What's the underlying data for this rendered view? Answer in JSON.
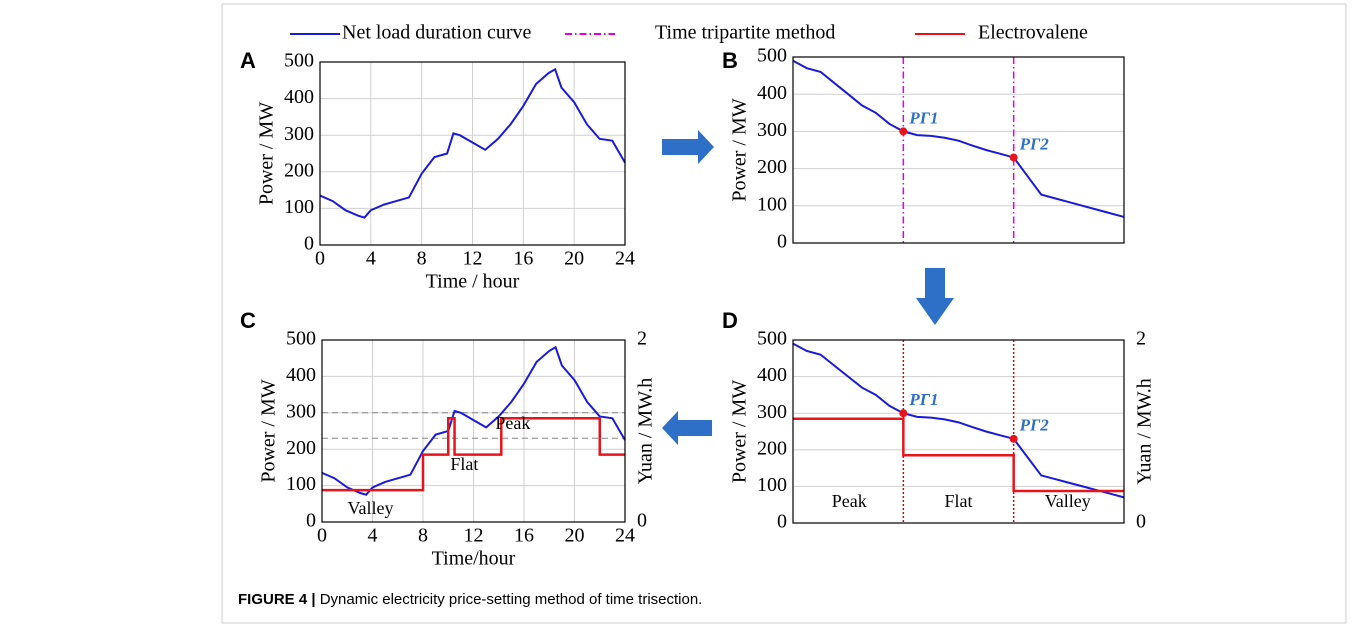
{
  "legend": [
    {
      "name": "Net load duration curve",
      "color": "#1a1adb",
      "style": "solid"
    },
    {
      "name": "Time tripartite method",
      "color": "#e000e0",
      "style": "dashdot"
    },
    {
      "name": "Electrovalene",
      "color": "#e8141c",
      "style": "solid"
    }
  ],
  "caption": {
    "label": "FIGURE 4 |",
    "text": "Dynamic electricity price-setting method of time trisection."
  },
  "chart_data": [
    {
      "type": "line",
      "panel": "A",
      "x": [
        0,
        1,
        2,
        3,
        3.5,
        4,
        5,
        6,
        7,
        8,
        9,
        10,
        10.5,
        11,
        12,
        13,
        14,
        15,
        16,
        17,
        18,
        18.5,
        19,
        20,
        21,
        22,
        23,
        24
      ],
      "series": [
        {
          "color": "#1a1adb",
          "values": [
            135,
            120,
            95,
            80,
            75,
            95,
            110,
            120,
            130,
            195,
            240,
            250,
            305,
            300,
            280,
            260,
            290,
            330,
            380,
            440,
            470,
            480,
            430,
            390,
            330,
            290,
            285,
            225
          ]
        }
      ],
      "xlim": [
        0,
        24
      ],
      "xticks": [
        0,
        4,
        8,
        12,
        16,
        20,
        24
      ],
      "ylim": [
        0,
        500
      ],
      "yticks": [
        0,
        100,
        200,
        300,
        400,
        500
      ],
      "xlabel": "Time / hour",
      "ylabel": "Power / MW",
      "grid": true
    },
    {
      "type": "line",
      "panel": "B",
      "x": [
        0,
        1,
        2,
        3,
        4,
        5,
        6,
        7,
        8,
        9,
        10,
        11,
        12,
        13,
        14,
        15,
        16,
        17,
        18,
        19,
        20,
        21,
        22,
        23,
        24
      ],
      "series": [
        {
          "color": "#1a1adb",
          "values": [
            490,
            470,
            460,
            430,
            400,
            370,
            350,
            320,
            300,
            290,
            288,
            283,
            275,
            262,
            250,
            240,
            230,
            180,
            130,
            120,
            110,
            100,
            90,
            80,
            70
          ]
        }
      ],
      "xlim": [
        0,
        24
      ],
      "ylim": [
        0,
        500
      ],
      "yticks": [
        0,
        100,
        200,
        300,
        400,
        500
      ],
      "ylabel": "Power / MW",
      "grid": true,
      "vlines": {
        "x": [
          8,
          16
        ],
        "color": "#e000e0",
        "style": "dashdot"
      },
      "points": [
        {
          "label": "PΓ1",
          "x": 8,
          "y": 300
        },
        {
          "label": "PΓ2",
          "x": 16,
          "y": 230
        }
      ]
    },
    {
      "type": "line",
      "panel": "C",
      "x": [
        0,
        1,
        2,
        3,
        3.5,
        4,
        5,
        6,
        7,
        8,
        9,
        10,
        10.5,
        11,
        12,
        13,
        14,
        15,
        16,
        17,
        18,
        18.5,
        19,
        20,
        21,
        22,
        23,
        24
      ],
      "series": [
        {
          "color": "#1a1adb",
          "values": [
            135,
            120,
            95,
            80,
            75,
            95,
            110,
            120,
            130,
            195,
            240,
            250,
            305,
            300,
            280,
            260,
            290,
            330,
            380,
            440,
            470,
            480,
            430,
            390,
            330,
            290,
            285,
            225
          ]
        },
        {
          "color": "#e8141c",
          "axis": "y2",
          "step": true,
          "x": [
            0,
            8,
            10,
            10.5,
            14.2,
            22,
            24
          ],
          "values": [
            0.35,
            0.74,
            1.14,
            0.74,
            1.14,
            0.74,
            0.74
          ]
        }
      ],
      "xlim": [
        0,
        24
      ],
      "xticks": [
        0,
        4,
        8,
        12,
        16,
        20,
        24
      ],
      "ylim": [
        0,
        500
      ],
      "yticks": [
        0,
        100,
        200,
        300,
        400,
        500
      ],
      "y2lim": [
        0,
        2
      ],
      "y2ticks": [
        0,
        2
      ],
      "xlabel": "Time/hour",
      "ylabel": "Power / MW",
      "y2label": "Yuan / MW.h",
      "grid": true,
      "hlines": {
        "y": [
          300,
          230
        ],
        "color": "#888888"
      },
      "regions": [
        "Valley",
        "Flat",
        "Peak"
      ]
    },
    {
      "type": "line",
      "panel": "D",
      "x": [
        0,
        1,
        2,
        3,
        4,
        5,
        6,
        7,
        8,
        9,
        10,
        11,
        12,
        13,
        14,
        15,
        16,
        17,
        18,
        19,
        20,
        21,
        22,
        23,
        24
      ],
      "series": [
        {
          "color": "#1a1adb",
          "values": [
            490,
            470,
            460,
            430,
            400,
            370,
            350,
            320,
            300,
            290,
            288,
            283,
            275,
            262,
            250,
            240,
            230,
            180,
            130,
            120,
            110,
            100,
            90,
            80,
            70
          ]
        },
        {
          "color": "#e8141c",
          "axis": "y2",
          "step": true,
          "x": [
            0,
            8,
            16,
            24
          ],
          "values": [
            1.14,
            0.74,
            0.35,
            0.35
          ]
        }
      ],
      "xlim": [
        0,
        24
      ],
      "ylim": [
        0,
        500
      ],
      "yticks": [
        0,
        100,
        200,
        300,
        400,
        500
      ],
      "y2lim": [
        0,
        2
      ],
      "y2ticks": [
        0,
        2
      ],
      "ylabel": "Power / MW",
      "y2label": "Yuan / MW.h",
      "grid": true,
      "vlines": {
        "x": [
          8,
          16
        ],
        "color": "#c01010",
        "style": "dotted"
      },
      "points": [
        {
          "label": "PΓ1",
          "x": 8,
          "y": 300
        },
        {
          "label": "PΓ2",
          "x": 16,
          "y": 230
        }
      ],
      "regions": [
        "Peak",
        "Flat",
        "Valley"
      ]
    }
  ]
}
